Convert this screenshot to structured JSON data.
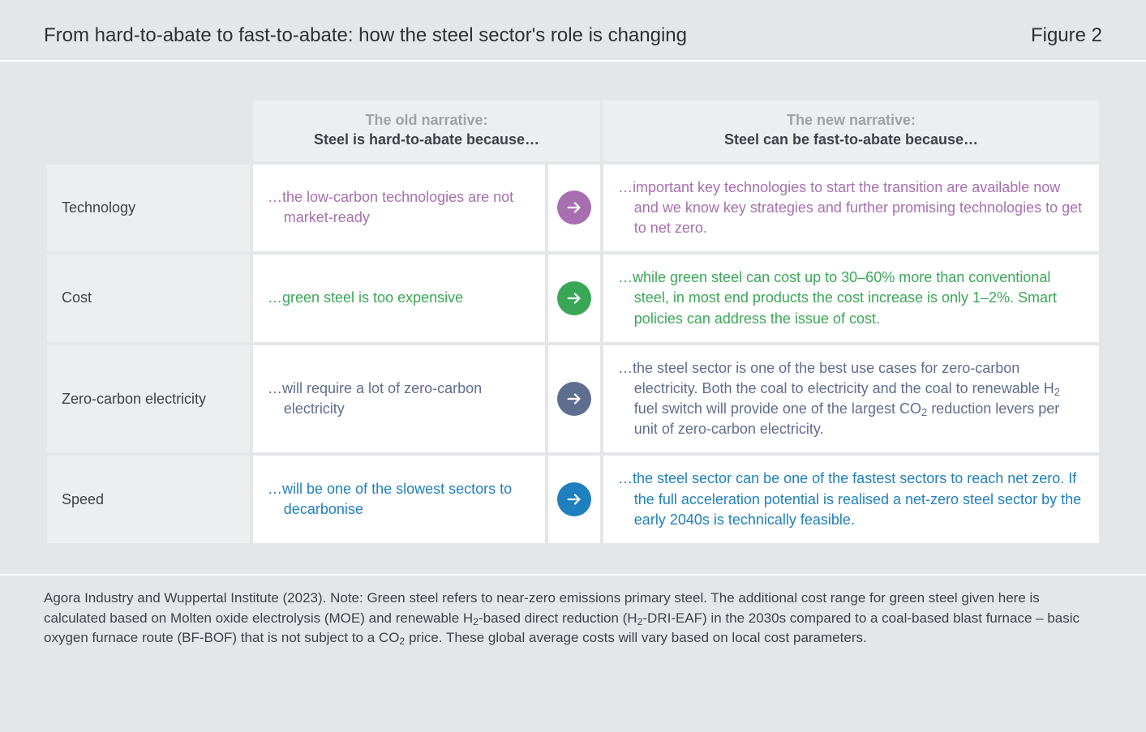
{
  "header": {
    "title": "From hard-to-abate to fast-to-abate: how the steel sector's role is changing",
    "figure_label": "Figure 2"
  },
  "columns": {
    "old_muted": "The old narrative:",
    "old_main": "Steel is hard-to-abate because…",
    "new_muted": "The new narrative:",
    "new_main": "Steel can be fast-to-abate because…"
  },
  "rows": [
    {
      "key": "technology",
      "label": "Technology",
      "color": "#a86fb0",
      "old": "…the low-carbon technologies are not market-ready",
      "new": "…important key technologies to start the transition are available now and we know key strategies and further promising technologies to get to net zero."
    },
    {
      "key": "cost",
      "label": "Cost",
      "color": "#3aa757",
      "old": "…green steel is too expensive",
      "new": "…while green steel can cost up to 30–60% more than conventional steel, in most end products the cost increase is only 1–2%. Smart policies can address the issue of cost."
    },
    {
      "key": "zero-carbon-electricity",
      "label": "Zero-carbon electricity",
      "color": "#5f6e8e",
      "old": "…will require a lot of zero-carbon electricity",
      "new_html": "…the steel sector is one of the best use cases for zero-carbon electricity. Both the coal to electricity and the coal to renewable H<sub>2</sub> fuel switch will provide one of the largest CO<sub>2</sub> reduction levers per unit of zero-carbon electricity."
    },
    {
      "key": "speed",
      "label": "Speed",
      "color": "#1f7fbf",
      "old": "…will be one of the slowest sectors to decarbonise",
      "new": "…the steel sector can be one of the fastest sectors to reach net zero. If the full acceleration potential is realised a net-zero steel sector by the early 2040s is technically feasible."
    }
  ],
  "footnote_html": "Agora Industry and Wuppertal Institute (2023). Note: Green steel refers to near-zero emissions primary steel. The additional cost range for green steel given here is calculated based on Molten oxide electrolysis (MOE) and renewable H<sub>2</sub>-based direct reduction (H<sub>2</sub>-DRI-EAF) in the 2030s compared to a coal-based blast furnace – basic oxygen furnace route (BF-BOF) that is not subject to a CO<sub>2</sub> price. These global average costs will vary based on local cost parameters.",
  "style": {
    "page_bg": "#e5e6e9",
    "cell_bg": "#ffffff",
    "label_bg": "#edeeef",
    "muted_text": "#9ea2a8",
    "text": "#3e4249"
  }
}
